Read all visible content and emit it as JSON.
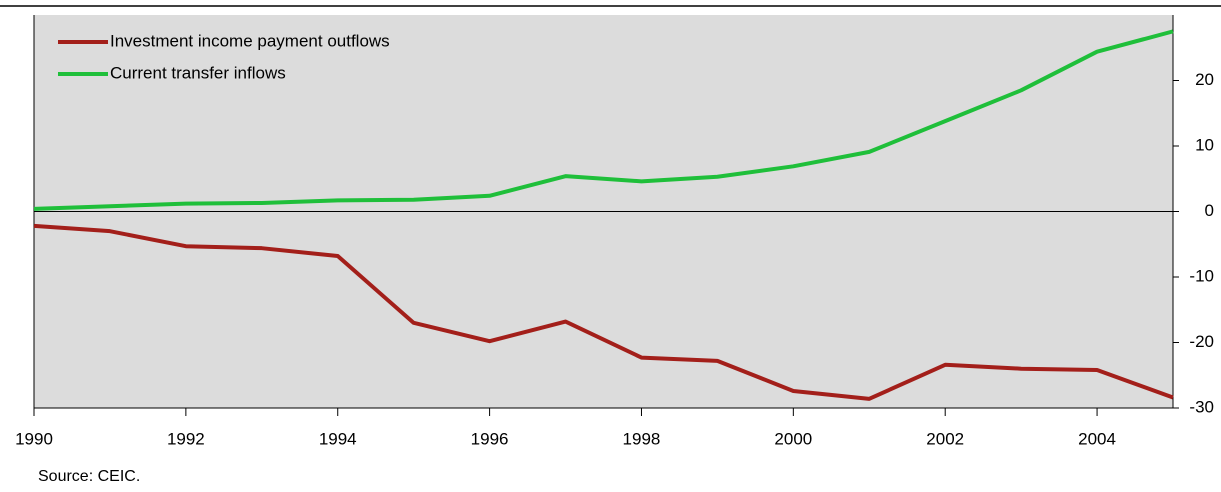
{
  "chart_data": {
    "type": "line",
    "source": "Source: CEIC.",
    "x": [
      1990,
      1991,
      1992,
      1993,
      1994,
      1995,
      1996,
      1997,
      1998,
      1999,
      2000,
      2001,
      2002,
      2003,
      2004,
      2005
    ],
    "series": [
      {
        "name": "Investment income payment outflows",
        "color": "#a31f1a",
        "values": [
          -2.2,
          -3.0,
          -5.3,
          -5.6,
          -6.8,
          -17.0,
          -19.8,
          -16.8,
          -22.3,
          -22.8,
          -27.4,
          -28.6,
          -23.4,
          -24.0,
          -24.2,
          -28.4
        ]
      },
      {
        "name": "Current transfer inflows",
        "color": "#1fbf3a",
        "values": [
          0.4,
          0.8,
          1.2,
          1.3,
          1.7,
          1.8,
          2.4,
          5.4,
          4.6,
          5.3,
          6.9,
          9.1,
          13.8,
          18.5,
          24.4,
          27.5
        ]
      }
    ],
    "xlim": [
      1990,
      2005
    ],
    "xticks": [
      1990,
      1992,
      1994,
      1996,
      1998,
      2000,
      2002,
      2004
    ],
    "ylim": [
      -30,
      30
    ],
    "yticks": [
      -30,
      -20,
      -10,
      0,
      10,
      20
    ],
    "legend": "top-left"
  }
}
